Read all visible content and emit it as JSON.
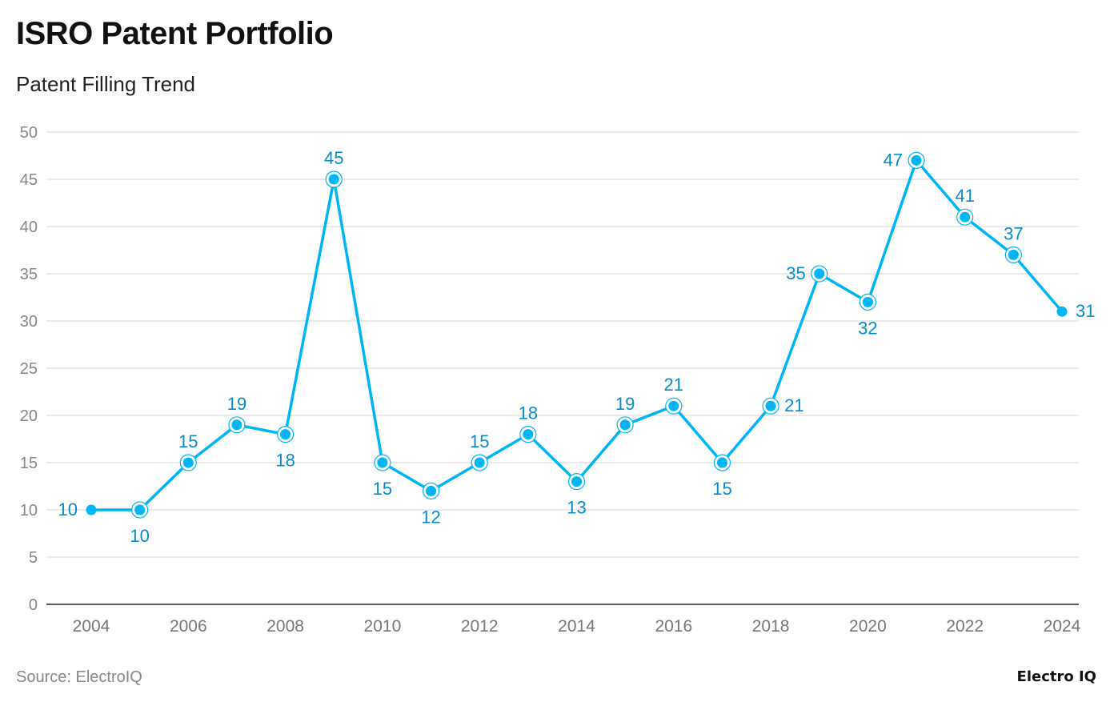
{
  "title": "ISRO Patent Portfolio",
  "subtitle": "Patent Filling Trend",
  "source": "Source: ElectroIQ",
  "brand": "Electro IQ",
  "colors": {
    "line": "#00b5f5",
    "label": "#0a8ccc",
    "grid": "#e3e3e3",
    "axis": "#222222",
    "tick": "#888888"
  },
  "chart_data": {
    "type": "line",
    "x": [
      2004,
      2005,
      2006,
      2007,
      2008,
      2009,
      2010,
      2011,
      2012,
      2013,
      2014,
      2015,
      2016,
      2017,
      2018,
      2019,
      2020,
      2021,
      2022,
      2023,
      2024
    ],
    "values": [
      10,
      10,
      15,
      19,
      18,
      45,
      15,
      12,
      15,
      18,
      13,
      19,
      21,
      15,
      21,
      35,
      32,
      47,
      41,
      37,
      31
    ],
    "x_ticks": [
      2004,
      2006,
      2008,
      2010,
      2012,
      2014,
      2016,
      2018,
      2020,
      2022,
      2024
    ],
    "y_ticks": [
      0,
      5,
      10,
      15,
      20,
      25,
      30,
      35,
      40,
      45,
      50
    ],
    "ylim": [
      0,
      50
    ],
    "grid": true,
    "data_labels": true,
    "xlabel": "",
    "ylabel": ""
  }
}
